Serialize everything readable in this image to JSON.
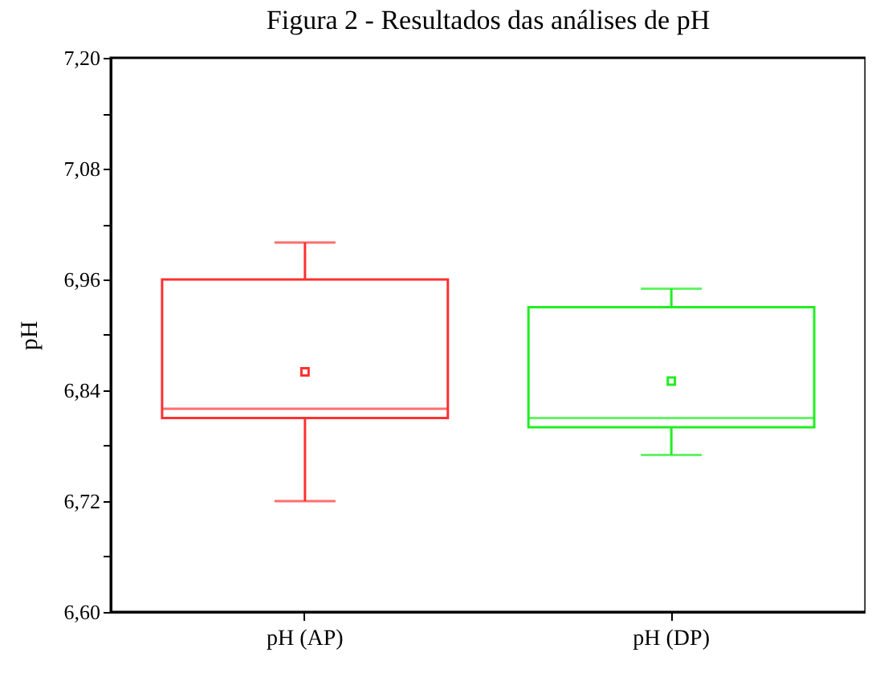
{
  "chart_data": {
    "type": "box",
    "title": "Figura 2 - Resultados das análises de pH",
    "ylabel": "pH",
    "categories": [
      "pH (AP)",
      "pH (DP)"
    ],
    "boxes": [
      {
        "low": 6.72,
        "q1": 6.81,
        "median": 6.82,
        "q3": 6.96,
        "high": 7.0,
        "mean": 6.86
      },
      {
        "low": 6.77,
        "q1": 6.8,
        "median": 6.81,
        "q3": 6.93,
        "high": 6.95,
        "mean": 6.85
      }
    ],
    "colors": [
      "#ff3030",
      "#22ee22"
    ],
    "ylim": [
      6.6,
      7.2
    ],
    "yticks": [
      {
        "value": 6.6,
        "label": "6,60"
      },
      {
        "value": 6.66,
        "label": null
      },
      {
        "value": 6.72,
        "label": "6,72"
      },
      {
        "value": 6.78,
        "label": null
      },
      {
        "value": 6.84,
        "label": "6,84"
      },
      {
        "value": 6.9,
        "label": null
      },
      {
        "value": 6.96,
        "label": "6,96"
      },
      {
        "value": 7.02,
        "label": null
      },
      {
        "value": 7.08,
        "label": "7,08"
      },
      {
        "value": 7.14,
        "label": null
      },
      {
        "value": 7.2,
        "label": "7,20"
      }
    ],
    "grid": false,
    "legend": false
  }
}
